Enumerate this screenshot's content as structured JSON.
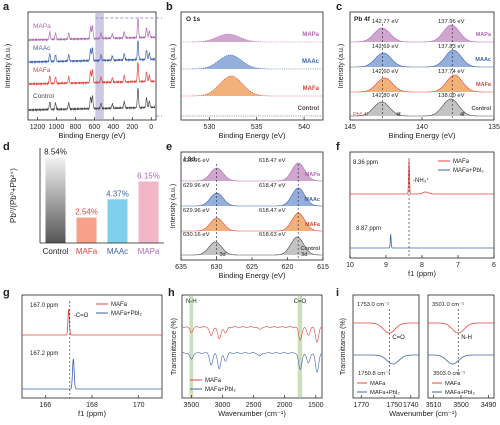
{
  "colors": {
    "mapa": "#b06ab3",
    "maac": "#3f62ab",
    "mafa": "#e1453f",
    "control": "#4a4a4a",
    "mapa_fill": "#c99ccb",
    "maac_fill": "#8aa6d8",
    "mafa_fill": "#f0a96a",
    "bar_control_top": "#f2f2f2",
    "bar_control_bottom": "#555555",
    "bar_mafa": "#f7a08a",
    "bar_maac": "#7fd0ea",
    "bar_mapa": "#f3b5c8",
    "green_band": "#a8cc8c",
    "purple_band": "#b9b2d6"
  },
  "panels": {
    "a": {
      "letter": "a",
      "ylabel": "Intensity (a.u.)",
      "xlabel": "Binding Energy (eV)",
      "xticks": [
        "1200",
        "1000",
        "800",
        "600",
        "400",
        "200",
        "0"
      ],
      "series_labels": [
        "MAPa",
        "MAAc",
        "MAFa",
        "Control"
      ]
    },
    "b": {
      "letter": "b",
      "title": "O 1s",
      "ylabel": "Intensity (a.u.)",
      "xlabel": "Binding Energy (eV)",
      "xticks": [
        "530",
        "535",
        "540"
      ],
      "series_labels": [
        "MAPa",
        "MAAc",
        "MAFa",
        "Control"
      ]
    },
    "c": {
      "letter": "c",
      "title": "Pb 4f",
      "ylabel": "Intensity (a.u.)",
      "xlabel": "Binding Energy (eV)",
      "xticks": [
        "145",
        "140",
        "135"
      ],
      "series_labels": [
        "MAPa",
        "MAAc",
        "MAFa",
        "Control"
      ],
      "annotations": [
        [
          "142.77 eV",
          "137.96 eV"
        ],
        [
          "142.69 eV",
          "137.83 eV"
        ],
        [
          "142.60 eV",
          "137.74 eV"
        ],
        [
          "142.80 eV",
          "138.00 eV"
        ]
      ],
      "legend": "Pb⁰ 4f",
      "label_left": "4f",
      "label_right": "4f"
    },
    "d": {
      "letter": "d",
      "ylabel": "Pb⁰/(Pb⁰+Pb²⁺)",
      "categories": [
        "Control",
        "MAFa",
        "MAAc",
        "MAPa"
      ],
      "value_labels": [
        "8.54%",
        "2.54%",
        "4.37%",
        "6.15%"
      ]
    },
    "e": {
      "letter": "e",
      "title": "I 3d",
      "ylabel": "Intensity (a.u.)",
      "xlabel": "Binding Energy (eV)",
      "xticks": [
        "635",
        "630",
        "625",
        "620",
        "615"
      ],
      "series_labels": [
        "MAPa",
        "MAAc",
        "MAFa",
        "Control"
      ],
      "annotations": [
        [
          "629.96 eV",
          "618.47 eV"
        ],
        [
          "629.96 eV",
          "618.47 eV"
        ],
        [
          "629.96 eV",
          "618.47 eV"
        ],
        [
          "630.16 eV",
          "618.63 eV"
        ]
      ],
      "label_left": "3d",
      "label_right": "3d"
    },
    "f": {
      "letter": "f",
      "xlabel": "f1 (ppm)",
      "xticks": [
        "10",
        "9",
        "8",
        "7",
        "6"
      ],
      "legend": [
        "MAFa",
        "MAFa+PbI₂"
      ],
      "annotations": [
        "8.36 ppm",
        "8.87 ppm",
        "-NH₃⁺"
      ]
    },
    "g": {
      "letter": "g",
      "xlabel": "f1 (ppm)",
      "xticks": [
        "166",
        "168",
        "170"
      ],
      "legend": [
        "MAFa",
        "MAFa+PbI₂"
      ],
      "annotations": [
        "167.0 ppm",
        "-C=O",
        "167.2 ppm"
      ]
    },
    "h": {
      "letter": "h",
      "ylabel": "Transmittance (%)",
      "xlabel": "Wavenumber (cm⁻¹)",
      "xticks": [
        "3500",
        "3000",
        "2500",
        "2000",
        "1500"
      ],
      "band_labels": [
        "N-H",
        "C=O"
      ],
      "legend": [
        "MAFa",
        "MAFa+PbI₂"
      ]
    },
    "i": {
      "letter": "i",
      "ylabel": "Transmittance (%)",
      "xlabel": "Wavenumber (cm⁻¹)",
      "xticks_left": [
        "1770",
        "1750",
        "1740"
      ],
      "xticks_right": [
        "3510",
        "3500",
        "3490"
      ],
      "annotations_left": [
        "1753.0 cm⁻¹",
        "C=O",
        "1750.8 cm⁻¹"
      ],
      "annotations_right": [
        "3501.0 cm⁻¹",
        "N-H",
        "3503.0 cm⁻¹"
      ],
      "legend": [
        "MAFa",
        "MAFa+PbI₂"
      ]
    }
  },
  "chart_data": [
    {
      "type": "line",
      "panel": "a",
      "title": "",
      "xlabel": "Binding Energy (eV)",
      "ylabel": "Intensity (a.u.)",
      "xlim": [
        1300,
        -50
      ],
      "series": [
        {
          "name": "MAPa"
        },
        {
          "name": "MAAc"
        },
        {
          "name": "MAFa"
        },
        {
          "name": "Control"
        }
      ]
    },
    {
      "type": "area",
      "panel": "b",
      "title": "O 1s",
      "xlabel": "Binding Energy (eV)",
      "ylabel": "Intensity (a.u.)",
      "xlim": [
        527,
        542
      ],
      "series": [
        {
          "name": "MAPa",
          "peak": 532.0
        },
        {
          "name": "MAAc",
          "peak": 532.2
        },
        {
          "name": "MAFa",
          "peak": 532.3
        },
        {
          "name": "Control"
        }
      ]
    },
    {
      "type": "area",
      "panel": "c",
      "title": "Pb 4f",
      "xlabel": "Binding Energy (eV)",
      "ylabel": "Intensity (a.u.)",
      "xlim": [
        145,
        135
      ],
      "series": [
        {
          "name": "MAPa",
          "peaks": [
            142.77,
            137.96
          ]
        },
        {
          "name": "MAAc",
          "peaks": [
            142.69,
            137.83
          ]
        },
        {
          "name": "MAFa",
          "peaks": [
            142.6,
            137.74
          ]
        },
        {
          "name": "Control",
          "peaks": [
            142.8,
            138.0
          ]
        }
      ]
    },
    {
      "type": "bar",
      "panel": "d",
      "ylabel": "Pb⁰/(Pb⁰+Pb²⁺)",
      "categories": [
        "Control",
        "MAFa",
        "MAAc",
        "MAPa"
      ],
      "values": [
        8.54,
        2.54,
        4.37,
        6.15
      ],
      "ylim": [
        0,
        9.5
      ]
    },
    {
      "type": "area",
      "panel": "e",
      "title": "I 3d",
      "xlabel": "Binding Energy (eV)",
      "ylabel": "Intensity (a.u.)",
      "xlim": [
        635,
        615
      ],
      "series": [
        {
          "name": "MAPa",
          "peaks": [
            629.96,
            618.47
          ]
        },
        {
          "name": "MAAc",
          "peaks": [
            629.96,
            618.47
          ]
        },
        {
          "name": "MAFa",
          "peaks": [
            629.96,
            618.47
          ]
        },
        {
          "name": "Control",
          "peaks": [
            630.16,
            618.63
          ]
        }
      ]
    },
    {
      "type": "line",
      "panel": "f",
      "xlabel": "f1 (ppm)",
      "xlim": [
        10,
        6
      ],
      "series": [
        {
          "name": "MAFa",
          "peak": 8.36
        },
        {
          "name": "MAFa+PbI₂",
          "peak": 8.87
        }
      ]
    },
    {
      "type": "line",
      "panel": "g",
      "xlabel": "f1 (ppm)",
      "xlim": [
        165,
        171
      ],
      "series": [
        {
          "name": "MAFa",
          "peak": 167.0
        },
        {
          "name": "MAFa+PbI₂",
          "peak": 167.2
        }
      ]
    },
    {
      "type": "line",
      "panel": "h",
      "xlabel": "Wavenumber (cm⁻¹)",
      "ylabel": "Transmittance (%)",
      "xlim": [
        3650,
        1400
      ],
      "series": [
        {
          "name": "MAFa"
        },
        {
          "name": "MAFa+PbI₂"
        }
      ]
    },
    {
      "type": "line",
      "panel": "i",
      "xlabel": "Wavenumber (cm⁻¹)",
      "ylabel": "Transmittance (%)",
      "series": [
        {
          "name": "MAFa",
          "peaks": [
            1753.0,
            3501.0
          ]
        },
        {
          "name": "MAFa+PbI₂",
          "peaks": [
            1750.8,
            3503.0
          ]
        }
      ]
    }
  ]
}
